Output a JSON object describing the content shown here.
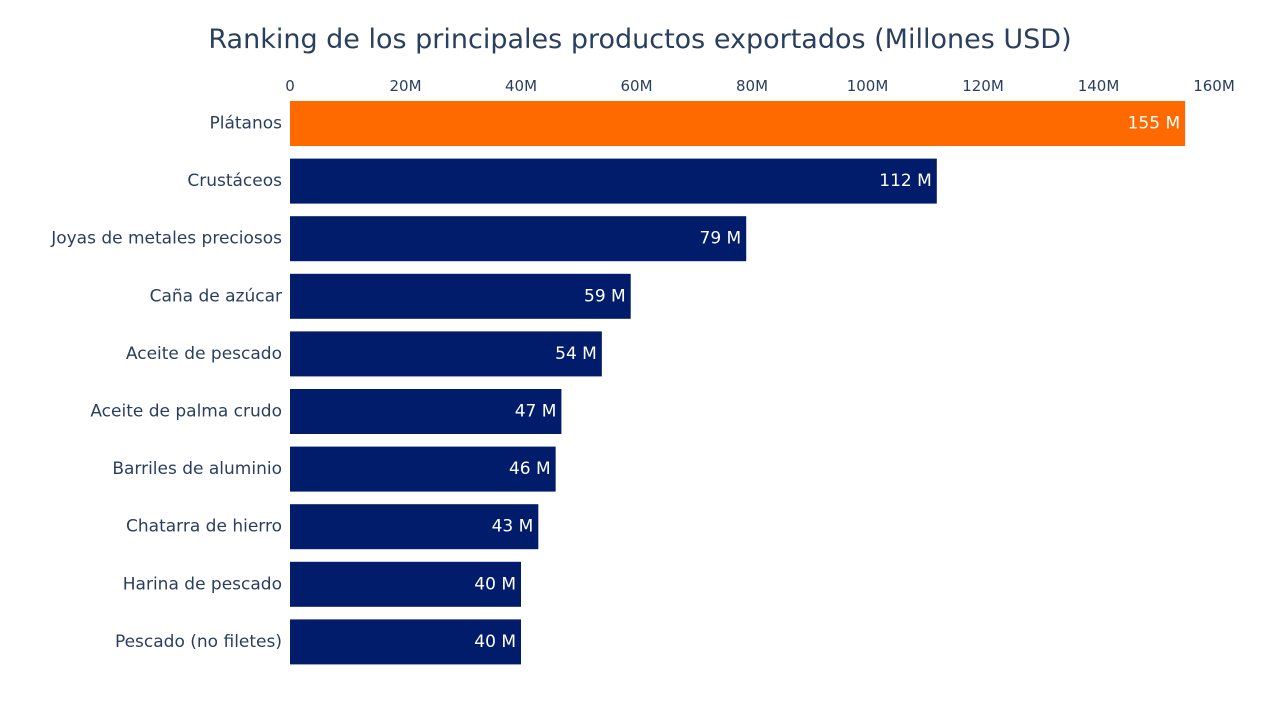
{
  "chart_data": {
    "type": "bar",
    "orientation": "horizontal",
    "title": "Ranking de los principales productos exportados (Millones USD)",
    "xlabel": "",
    "ylabel": "",
    "xlim": [
      0,
      160000000
    ],
    "x_ticks": [
      0,
      20000000,
      40000000,
      60000000,
      80000000,
      100000000,
      120000000,
      140000000,
      160000000
    ],
    "x_tick_labels": [
      "0",
      "20M",
      "40M",
      "60M",
      "80M",
      "100M",
      "120M",
      "140M",
      "160M"
    ],
    "x_axis_position": "top",
    "grid": false,
    "legend": "none",
    "categories": [
      "Plátanos",
      "Crustáceos",
      "Joyas de metales preciosos",
      "Caña de azúcar",
      "Aceite de pescado",
      "Aceite de palma crudo",
      "Barriles de aluminio",
      "Chatarra de hierro",
      "Harina de pescado",
      "Pescado (no filetes)"
    ],
    "values": [
      155000000,
      112000000,
      79000000,
      59000000,
      54000000,
      47000000,
      46000000,
      43000000,
      40000000,
      40000000
    ],
    "data_labels": [
      "155 M",
      "112 M",
      "79 M",
      "59 M",
      "54 M",
      "47 M",
      "46 M",
      "43 M",
      "40 M",
      "40 M"
    ],
    "colors": {
      "highlight": "#ff6a00",
      "default": "#001c6a",
      "text": "#2a3f5f",
      "data_label": "#ffffff"
    },
    "highlight_index": 0
  }
}
